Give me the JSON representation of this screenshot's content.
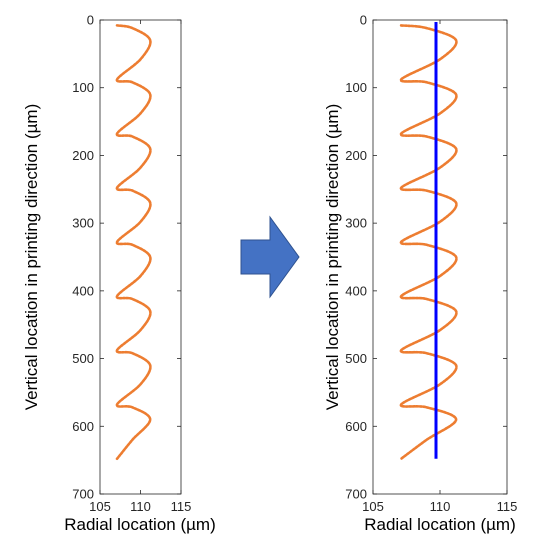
{
  "chart_data": [
    {
      "type": "line",
      "title": "",
      "xlabel": "Radial location (µm)",
      "ylabel": "Vertical location in printing direction (µm)",
      "xlim": [
        105,
        115
      ],
      "ylim": [
        0,
        700
      ],
      "y_reversed": true,
      "xticks": [
        "105",
        "110",
        "115"
      ],
      "yticks": [
        "0",
        "100",
        "200",
        "300",
        "400",
        "500",
        "600",
        "700"
      ],
      "grid": false,
      "legend": "none",
      "series": [
        {
          "color": "#ED7D31",
          "style": "dotted-helix",
          "x": [
            107.1,
            109.0,
            111.2,
            110.0,
            107.1,
            109.0,
            111.2,
            110.0,
            107.1,
            109.0,
            111.2,
            110.0,
            107.1,
            109.0,
            111.2,
            110.0,
            107.1,
            109.0,
            111.2,
            110.0,
            107.1,
            109.0,
            111.2,
            110.0,
            107.1,
            109.0,
            111.2,
            110.0,
            107.1,
            109.0,
            111.2,
            109.0,
            107.1
          ],
          "y": [
            8,
            12,
            30,
            58,
            88,
            92,
            110,
            138,
            168,
            172,
            190,
            218,
            248,
            252,
            270,
            298,
            328,
            332,
            350,
            378,
            408,
            412,
            430,
            458,
            488,
            492,
            510,
            538,
            568,
            572,
            590,
            620,
            648
          ]
        }
      ]
    },
    {
      "type": "line",
      "title": "",
      "xlabel": "Radial location (µm)",
      "ylabel": "Vertical location in printing direction (µm)",
      "xlim": [
        105,
        115
      ],
      "ylim": [
        0,
        700
      ],
      "y_reversed": true,
      "xticks": [
        "105",
        "110",
        "115"
      ],
      "yticks": [
        "0",
        "100",
        "200",
        "300",
        "400",
        "500",
        "600",
        "700"
      ],
      "grid": false,
      "legend": "none",
      "series": [
        {
          "color": "#ED7D31",
          "style": "dotted-helix",
          "x": [
            107.1,
            109.0,
            111.2,
            110.0,
            107.1,
            109.0,
            111.2,
            110.0,
            107.1,
            109.0,
            111.2,
            110.0,
            107.1,
            109.0,
            111.2,
            110.0,
            107.1,
            109.0,
            111.2,
            110.0,
            107.1,
            109.0,
            111.2,
            110.0,
            107.1,
            109.0,
            111.2,
            110.0,
            107.1,
            109.0,
            111.2,
            109.0,
            107.1
          ],
          "y": [
            8,
            12,
            30,
            58,
            88,
            92,
            110,
            138,
            168,
            172,
            190,
            218,
            248,
            252,
            270,
            298,
            328,
            332,
            350,
            378,
            408,
            412,
            430,
            458,
            488,
            492,
            510,
            538,
            568,
            572,
            590,
            620,
            648
          ]
        },
        {
          "color": "#0000FF",
          "style": "solid",
          "x": [
            109.7,
            109.7
          ],
          "y": [
            3,
            648
          ]
        }
      ]
    }
  ],
  "arrow": {
    "color": "#4472C4",
    "direction": "right"
  }
}
